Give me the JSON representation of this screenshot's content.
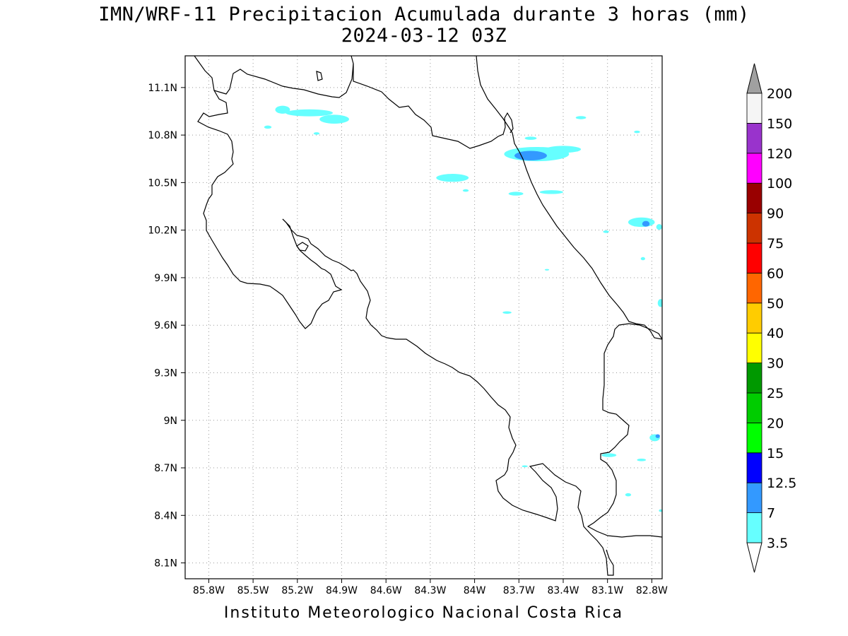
{
  "title_line1": "IMN/WRF-11 Precipitacion Acumulada durante 3 horas (mm)",
  "title_line2": "2024-03-12 03Z",
  "footer": "Instituto Meteorologico Nacional Costa Rica",
  "map": {
    "lon_range": [
      -85.96,
      -82.73
    ],
    "lat_range": [
      8.0,
      11.3
    ],
    "lon_ticks": [
      {
        "value": -85.8,
        "label": "85.8W"
      },
      {
        "value": -85.5,
        "label": "85.5W"
      },
      {
        "value": -85.2,
        "label": "85.2W"
      },
      {
        "value": -84.9,
        "label": "84.9W"
      },
      {
        "value": -84.6,
        "label": "84.6W"
      },
      {
        "value": -84.3,
        "label": "84.3W"
      },
      {
        "value": -84.0,
        "label": "84W"
      },
      {
        "value": -83.7,
        "label": "83.7W"
      },
      {
        "value": -83.4,
        "label": "83.4W"
      },
      {
        "value": -83.1,
        "label": "83.1W"
      },
      {
        "value": -82.8,
        "label": "82.8W"
      }
    ],
    "lat_ticks": [
      {
        "value": 11.1,
        "label": "11.1N"
      },
      {
        "value": 10.8,
        "label": "10.8N"
      },
      {
        "value": 10.5,
        "label": "10.5N"
      },
      {
        "value": 10.2,
        "label": "10.2N"
      },
      {
        "value": 9.9,
        "label": "9.9N"
      },
      {
        "value": 9.6,
        "label": "9.6N"
      },
      {
        "value": 9.3,
        "label": "9.3N"
      },
      {
        "value": 9.0,
        "label": "9N"
      },
      {
        "value": 8.7,
        "label": "8.7N"
      },
      {
        "value": 8.4,
        "label": "8.4N"
      },
      {
        "value": 8.1,
        "label": "8.1N"
      }
    ],
    "grid": "dotted"
  },
  "colorbar": {
    "levels": [
      "3.5",
      "7",
      "12.5",
      "15",
      "20",
      "25",
      "30",
      "40",
      "50",
      "60",
      "75",
      "90",
      "100",
      "120",
      "150",
      "200"
    ],
    "colors": [
      "#66ffff",
      "#3399ff",
      "#0000ff",
      "#00ff00",
      "#00cc00",
      "#009900",
      "#ffff00",
      "#ffcc00",
      "#ff6600",
      "#ff0000",
      "#cc3300",
      "#990000",
      "#ff00ff",
      "#9933cc",
      "#f5f5f5"
    ],
    "top_arrow_color": "#a0a0a0",
    "bottom_arrow_color": "#ffffff"
  },
  "precip_cells": [
    {
      "lon": -85.12,
      "lat": 10.94,
      "rx": 0.16,
      "ry": 0.022,
      "level": "3.5"
    },
    {
      "lon": -84.95,
      "lat": 10.9,
      "rx": 0.1,
      "ry": 0.028,
      "level": "3.5"
    },
    {
      "lon": -85.3,
      "lat": 10.96,
      "rx": 0.05,
      "ry": 0.025,
      "level": "3.5"
    },
    {
      "lon": -85.4,
      "lat": 10.85,
      "rx": 0.025,
      "ry": 0.01,
      "level": "3.5"
    },
    {
      "lon": -85.07,
      "lat": 10.81,
      "rx": 0.02,
      "ry": 0.008,
      "level": "3.5"
    },
    {
      "lon": -83.58,
      "lat": 10.68,
      "rx": 0.22,
      "ry": 0.045,
      "level": "3.5"
    },
    {
      "lon": -83.4,
      "lat": 10.71,
      "rx": 0.12,
      "ry": 0.022,
      "level": "3.5"
    },
    {
      "lon": -83.62,
      "lat": 10.67,
      "rx": 0.11,
      "ry": 0.03,
      "level": "7"
    },
    {
      "lon": -83.62,
      "lat": 10.78,
      "rx": 0.04,
      "ry": 0.01,
      "level": "3.5"
    },
    {
      "lon": -83.28,
      "lat": 10.91,
      "rx": 0.035,
      "ry": 0.01,
      "level": "3.5"
    },
    {
      "lon": -82.9,
      "lat": 10.82,
      "rx": 0.02,
      "ry": 0.008,
      "level": "3.5"
    },
    {
      "lon": -84.15,
      "lat": 10.53,
      "rx": 0.11,
      "ry": 0.025,
      "level": "3.5"
    },
    {
      "lon": -84.06,
      "lat": 10.45,
      "rx": 0.02,
      "ry": 0.008,
      "level": "3.5"
    },
    {
      "lon": -83.72,
      "lat": 10.43,
      "rx": 0.05,
      "ry": 0.012,
      "level": "3.5"
    },
    {
      "lon": -83.48,
      "lat": 10.44,
      "rx": 0.08,
      "ry": 0.012,
      "level": "3.5"
    },
    {
      "lon": -82.87,
      "lat": 10.25,
      "rx": 0.09,
      "ry": 0.03,
      "level": "3.5"
    },
    {
      "lon": -82.84,
      "lat": 10.24,
      "rx": 0.025,
      "ry": 0.018,
      "level": "7"
    },
    {
      "lon": -82.75,
      "lat": 10.22,
      "rx": 0.02,
      "ry": 0.018,
      "level": "3.5"
    },
    {
      "lon": -83.11,
      "lat": 10.19,
      "rx": 0.02,
      "ry": 0.008,
      "level": "3.5"
    },
    {
      "lon": -82.86,
      "lat": 10.02,
      "rx": 0.015,
      "ry": 0.01,
      "level": "3.5"
    },
    {
      "lon": -83.51,
      "lat": 9.95,
      "rx": 0.015,
      "ry": 0.005,
      "level": "3.5"
    },
    {
      "lon": -83.78,
      "lat": 9.68,
      "rx": 0.03,
      "ry": 0.008,
      "level": "3.5"
    },
    {
      "lon": -82.74,
      "lat": 9.74,
      "rx": 0.02,
      "ry": 0.025,
      "level": "3.5"
    },
    {
      "lon": -82.78,
      "lat": 8.89,
      "rx": 0.035,
      "ry": 0.022,
      "level": "3.5"
    },
    {
      "lon": -82.76,
      "lat": 8.9,
      "rx": 0.015,
      "ry": 0.012,
      "level": "7"
    },
    {
      "lon": -83.09,
      "lat": 8.78,
      "rx": 0.05,
      "ry": 0.012,
      "level": "3.5"
    },
    {
      "lon": -82.87,
      "lat": 8.75,
      "rx": 0.03,
      "ry": 0.008,
      "level": "3.5"
    },
    {
      "lon": -83.66,
      "lat": 8.71,
      "rx": 0.02,
      "ry": 0.006,
      "level": "3.5"
    },
    {
      "lon": -82.96,
      "lat": 8.53,
      "rx": 0.02,
      "ry": 0.01,
      "level": "3.5"
    },
    {
      "lon": -82.74,
      "lat": 8.43,
      "rx": 0.012,
      "ry": 0.008,
      "level": "3.5"
    }
  ]
}
